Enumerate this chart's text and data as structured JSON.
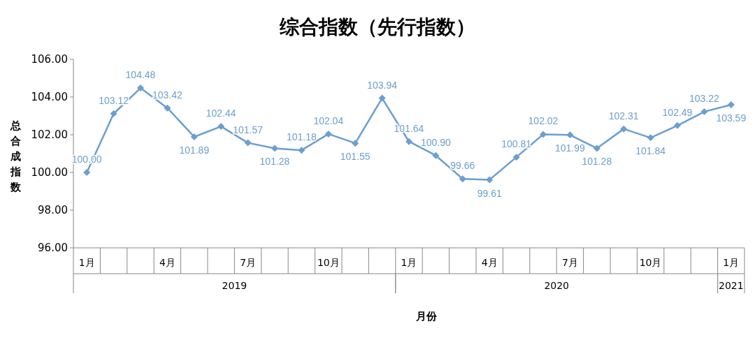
{
  "chart_data": {
    "type": "line",
    "title": "综合指数（先行指数）",
    "xlabel": "月份",
    "ylabel": "总合成指数",
    "categories": [
      "1月",
      null,
      null,
      "4月",
      null,
      null,
      "7月",
      null,
      null,
      "10月",
      null,
      null,
      "1月",
      null,
      null,
      "4月",
      null,
      null,
      "7月",
      null,
      null,
      "10月",
      null,
      null,
      "1月"
    ],
    "series": [
      {
        "color": "#6a9fcf",
        "values": [
          100.0,
          103.12,
          104.48,
          103.42,
          101.89,
          102.44,
          101.57,
          101.28,
          101.18,
          102.04,
          101.55,
          103.94,
          101.64,
          100.9,
          99.66,
          99.61,
          100.81,
          102.02,
          101.99,
          101.28,
          102.31,
          101.84,
          102.49,
          103.22,
          103.59
        ],
        "value_labels": [
          "100.00",
          "103.12",
          "104.48",
          "103.42",
          "101.89",
          "102.44",
          "101.57",
          "101.28",
          "101.18",
          "102.04",
          "101.55",
          "103.94",
          "101.64",
          "100.90",
          "99.66",
          "99.61",
          "100.81",
          "102.02",
          "101.99",
          "101.28",
          "102.31",
          "101.84",
          "102.49",
          "103.22",
          "103.59"
        ]
      }
    ],
    "ylim": [
      96,
      106
    ],
    "yticks": [
      {
        "value": 96,
        "label": "96.00"
      },
      {
        "value": 98,
        "label": "98.00"
      },
      {
        "value": 100,
        "label": "100.00"
      },
      {
        "value": 102,
        "label": "102.00"
      },
      {
        "value": 104,
        "label": "104.00"
      },
      {
        "value": 106,
        "label": "106.00"
      }
    ],
    "annotations": [
      "2019",
      "2020",
      "2021"
    ],
    "marker": "diamond",
    "grid": false
  }
}
